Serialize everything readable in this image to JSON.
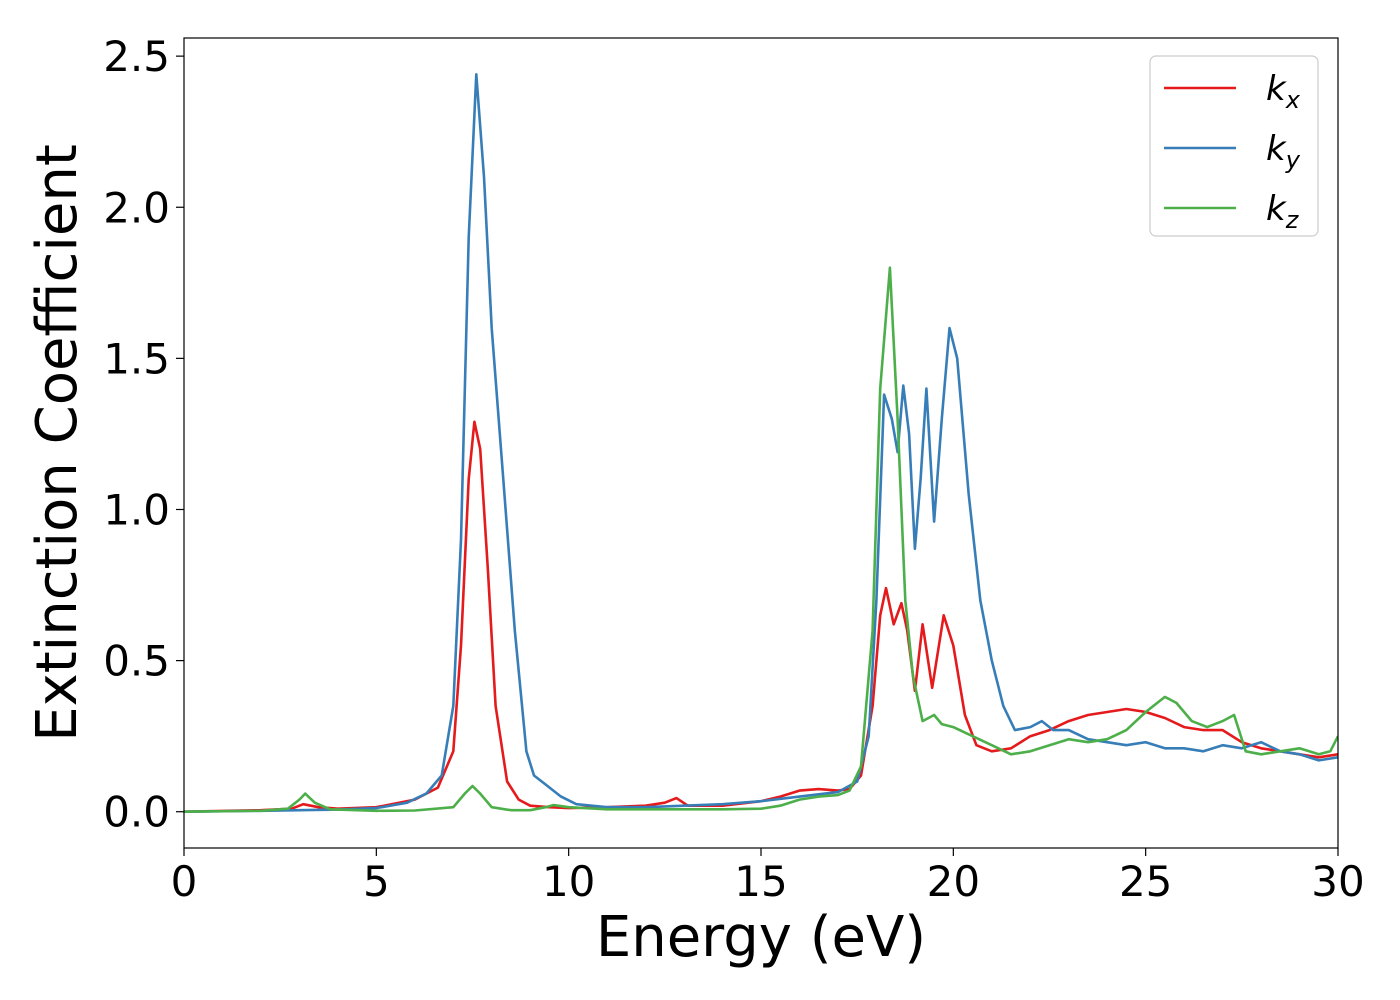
{
  "chart_data": {
    "type": "line",
    "xlabel": "Energy (eV)",
    "ylabel": "Extinction Coefficient",
    "xlim": [
      0,
      30
    ],
    "ylim": [
      -0.12,
      2.56
    ],
    "xticks": [
      "0",
      "5",
      "10",
      "15",
      "20",
      "25",
      "30"
    ],
    "yticks": [
      "0.0",
      "0.5",
      "1.0",
      "1.5",
      "2.0",
      "2.5"
    ],
    "grid": false,
    "legend_position": "top-right",
    "series": [
      {
        "name": "k",
        "subscript": "x",
        "color": "#e41a1c",
        "x": [
          0,
          2,
          2.8,
          3.1,
          3.5,
          4,
          5,
          6,
          6.6,
          7.0,
          7.2,
          7.4,
          7.55,
          7.7,
          7.9,
          8.1,
          8.4,
          8.7,
          9.0,
          9.5,
          10,
          11,
          12,
          12.5,
          12.8,
          13.1,
          14,
          15,
          15.5,
          16,
          16.5,
          17,
          17.3,
          17.6,
          17.9,
          18.1,
          18.25,
          18.45,
          18.65,
          18.8,
          19.0,
          19.2,
          19.45,
          19.75,
          20.0,
          20.3,
          20.6,
          21,
          21.5,
          22,
          22.5,
          23,
          23.5,
          24,
          24.5,
          25,
          25.5,
          26,
          26.5,
          27,
          27.5,
          28,
          28.5,
          29,
          29.5,
          30
        ],
        "y": [
          0.0,
          0.005,
          0.01,
          0.025,
          0.015,
          0.01,
          0.015,
          0.04,
          0.08,
          0.2,
          0.55,
          1.1,
          1.29,
          1.2,
          0.8,
          0.35,
          0.1,
          0.04,
          0.02,
          0.015,
          0.012,
          0.015,
          0.02,
          0.03,
          0.045,
          0.02,
          0.02,
          0.035,
          0.05,
          0.07,
          0.075,
          0.07,
          0.075,
          0.12,
          0.35,
          0.65,
          0.74,
          0.62,
          0.69,
          0.6,
          0.4,
          0.62,
          0.41,
          0.65,
          0.55,
          0.32,
          0.22,
          0.2,
          0.21,
          0.25,
          0.27,
          0.3,
          0.32,
          0.33,
          0.34,
          0.33,
          0.31,
          0.28,
          0.27,
          0.27,
          0.23,
          0.21,
          0.2,
          0.19,
          0.18,
          0.19
        ]
      },
      {
        "name": "k",
        "subscript": "y",
        "color": "#377eb8",
        "x": [
          0,
          2,
          3,
          4,
          5,
          5.8,
          6.3,
          6.7,
          7.0,
          7.2,
          7.4,
          7.6,
          7.8,
          8.0,
          8.3,
          8.6,
          8.9,
          9.1,
          9.4,
          9.8,
          10.2,
          11,
          12,
          13,
          14,
          15,
          16,
          17,
          17.5,
          17.8,
          18.0,
          18.2,
          18.4,
          18.55,
          18.7,
          18.85,
          19.0,
          19.15,
          19.3,
          19.5,
          19.7,
          19.9,
          20.1,
          20.4,
          20.7,
          21.0,
          21.3,
          21.6,
          22,
          22.3,
          22.6,
          23,
          23.5,
          24,
          24.5,
          25,
          25.5,
          26,
          26.5,
          27,
          27.5,
          28,
          28.5,
          29,
          29.5,
          30
        ],
        "y": [
          0.0,
          0.003,
          0.005,
          0.007,
          0.012,
          0.03,
          0.06,
          0.12,
          0.35,
          0.9,
          1.9,
          2.44,
          2.1,
          1.6,
          1.1,
          0.6,
          0.2,
          0.12,
          0.09,
          0.05,
          0.025,
          0.015,
          0.015,
          0.02,
          0.025,
          0.035,
          0.05,
          0.065,
          0.1,
          0.25,
          0.7,
          1.38,
          1.3,
          1.19,
          1.41,
          1.25,
          0.87,
          1.1,
          1.4,
          0.96,
          1.3,
          1.6,
          1.5,
          1.05,
          0.7,
          0.5,
          0.35,
          0.27,
          0.28,
          0.3,
          0.27,
          0.27,
          0.24,
          0.23,
          0.22,
          0.23,
          0.21,
          0.21,
          0.2,
          0.22,
          0.21,
          0.23,
          0.2,
          0.19,
          0.17,
          0.18
        ]
      },
      {
        "name": "k",
        "subscript": "z",
        "color": "#4daf4a",
        "x": [
          0,
          2,
          2.7,
          3.0,
          3.15,
          3.4,
          3.8,
          5,
          6,
          7.0,
          7.3,
          7.5,
          7.7,
          8.0,
          8.5,
          9.0,
          9.4,
          9.6,
          10,
          11,
          12,
          13,
          14,
          15,
          15.5,
          16,
          16.5,
          17,
          17.3,
          17.6,
          17.9,
          18.1,
          18.35,
          18.55,
          18.75,
          18.95,
          19.2,
          19.5,
          19.7,
          20,
          20.5,
          21,
          21.5,
          22,
          22.5,
          23,
          23.5,
          24,
          24.5,
          25,
          25.5,
          25.8,
          26.2,
          26.6,
          27,
          27.3,
          27.6,
          28,
          28.5,
          29,
          29.5,
          29.8,
          30
        ],
        "y": [
          0.0,
          0.003,
          0.01,
          0.04,
          0.06,
          0.03,
          0.008,
          0.003,
          0.004,
          0.015,
          0.06,
          0.085,
          0.06,
          0.015,
          0.005,
          0.005,
          0.015,
          0.022,
          0.015,
          0.008,
          0.008,
          0.008,
          0.008,
          0.01,
          0.02,
          0.04,
          0.05,
          0.055,
          0.07,
          0.15,
          0.6,
          1.4,
          1.8,
          1.3,
          0.7,
          0.45,
          0.3,
          0.32,
          0.29,
          0.28,
          0.25,
          0.22,
          0.19,
          0.2,
          0.22,
          0.24,
          0.23,
          0.24,
          0.27,
          0.33,
          0.38,
          0.36,
          0.3,
          0.28,
          0.3,
          0.32,
          0.2,
          0.19,
          0.2,
          0.21,
          0.19,
          0.2,
          0.25
        ]
      }
    ]
  }
}
